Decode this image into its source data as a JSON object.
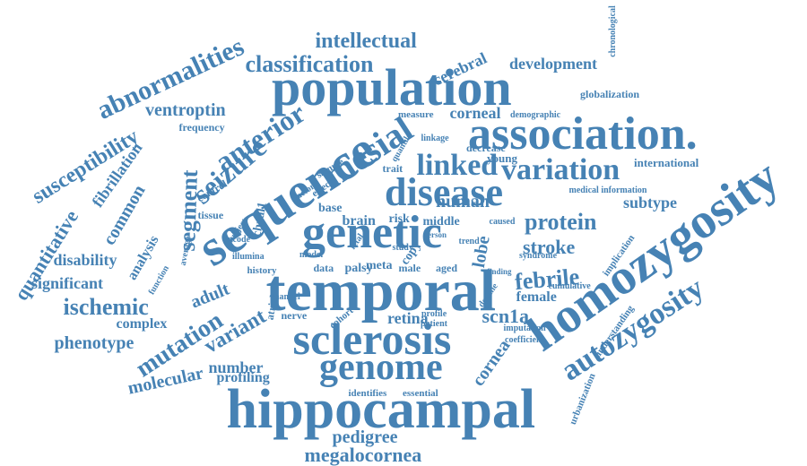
{
  "word_color": "#4682b4",
  "words": [
    "hippocampal",
    "temporal",
    "population",
    "sequence",
    "homozygosity",
    "association.",
    "genetic",
    "sclerosis",
    "genome",
    "disease",
    "mesial",
    "linked",
    "variation",
    "autozygosity",
    "anterior",
    "abnormalities",
    "seizure",
    "classification",
    "intellectual",
    "susceptibility",
    "segment",
    "mutation",
    "ischemic",
    "quantitative",
    "protein",
    "stroke",
    "febrile",
    "variant",
    "megalocornea",
    "phenotype",
    "development",
    "pedigree",
    "molecular",
    "ventroptin",
    "scn1a",
    "human",
    "common",
    "corneal",
    "cerebral",
    "retina",
    "lobe",
    "subtype",
    "significant",
    "disability",
    "fibrillation",
    "analysis",
    "adult",
    "complex",
    "number",
    "profiling",
    "cornea",
    "female",
    "brain",
    "middle",
    "globalization",
    "international",
    "frequency",
    "tissue",
    "control",
    "chrdl1",
    "young",
    "decrease",
    "understanding",
    "urbanization",
    "implication",
    "male",
    "aged",
    "palsy",
    "meta",
    "copy",
    "data",
    "nerve",
    "cohort",
    "identifies",
    "essential",
    "risk",
    "base",
    "measure",
    "demographic",
    "chronological",
    "medical information",
    "cumulative",
    "imputation",
    "coefficient",
    "profile",
    "patient",
    "function",
    "average",
    "atrial",
    "history",
    "illumina",
    "channel",
    "trait",
    "quantile",
    "subject",
    "encode",
    "factor",
    "effect",
    "sample",
    "caused",
    "linkage",
    "syndrome",
    "finding",
    "decline",
    "study",
    "fetal",
    "model",
    "person",
    "trend"
  ]
}
